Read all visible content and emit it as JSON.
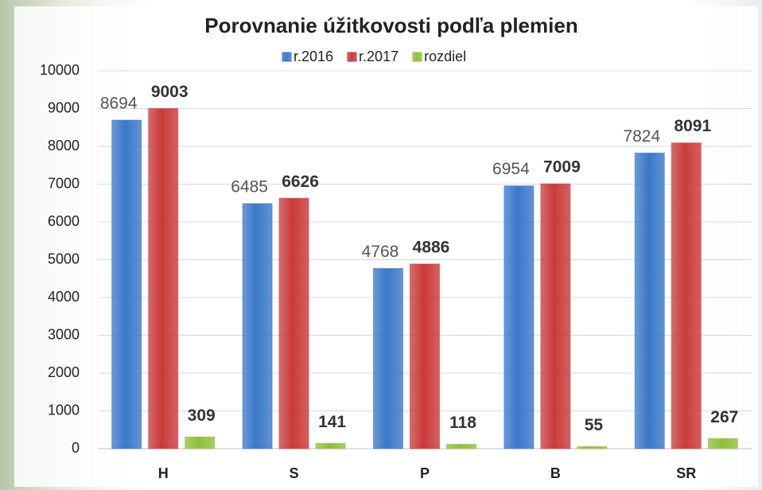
{
  "chart_data": {
    "type": "bar",
    "title": "Porovnanie úžitkovosti podľa plemien",
    "categories": [
      "H",
      "S",
      "P",
      "B",
      "SR"
    ],
    "series": [
      {
        "name": "r.2016",
        "color": "#3a78c9",
        "values": [
          8694,
          6485,
          4768,
          6954,
          7824
        ]
      },
      {
        "name": "r.2017",
        "color": "#c93a3a",
        "values": [
          9003,
          6626,
          4886,
          7009,
          8091
        ]
      },
      {
        "name": "rozdiel",
        "color": "#8fbf3a",
        "values": [
          309,
          141,
          118,
          55,
          267
        ]
      }
    ],
    "ylim": [
      0,
      10000
    ],
    "yticks": [
      0,
      1000,
      2000,
      3000,
      4000,
      5000,
      6000,
      7000,
      8000,
      9000,
      10000
    ],
    "grid": true,
    "legend": "top"
  }
}
